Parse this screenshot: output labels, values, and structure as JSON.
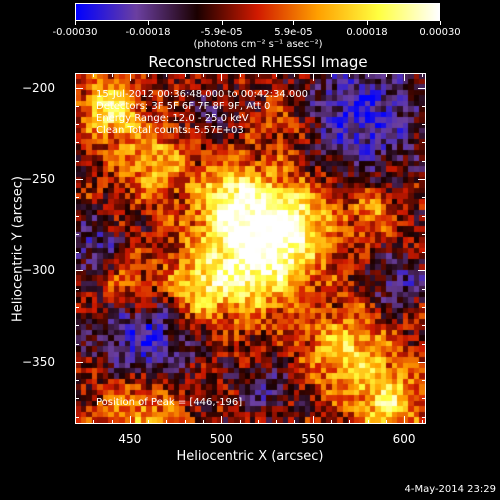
{
  "colorbar": {
    "units": "(photons cm⁻² s⁻¹ asec⁻²)",
    "tick_labels": [
      "-0.00030",
      "-0.00018",
      "-5.9e-05",
      "5.9e-05",
      "0.00018",
      "0.00030"
    ],
    "stops": [
      "#0000ff",
      "#6b3fa0",
      "#1a0000",
      "#d11a00",
      "#ffa000",
      "#ffff40",
      "#ffffff"
    ]
  },
  "title": "Reconstructed RHESSI Image",
  "annotations": {
    "time": "15-Jul-2012 00:36:48.000 to 00:42:34.000",
    "detectors": "Detectors: 3F 5F 6F 7F 8F 9F, Att 0",
    "energy": "Energy Range: 12.0 - 25.0 keV",
    "clean": "Clean    Total counts: 5.57E+03",
    "peak": "Position of Peak = [446,-196]"
  },
  "chart_data": {
    "type": "heatmap",
    "title": "Reconstructed RHESSI Image",
    "xlabel": "Heliocentric X (arcsec)",
    "ylabel": "Heliocentric Y (arcsec)",
    "xlim": [
      420,
      612
    ],
    "ylim": [
      -384,
      -192
    ],
    "xticks": [
      450,
      500,
      550,
      600
    ],
    "yticks": [
      -200,
      -250,
      -300,
      -350
    ],
    "colorbar_range": [
      -0.0003,
      0.0003
    ],
    "peak_position": [
      446,
      -196
    ]
  },
  "axes": {
    "x_tick_labels": [
      "450",
      "500",
      "550",
      "600"
    ],
    "y_tick_labels": [
      "−200",
      "−250",
      "−300",
      "−350"
    ]
  },
  "timestamp": "4-May-2014 23:29"
}
